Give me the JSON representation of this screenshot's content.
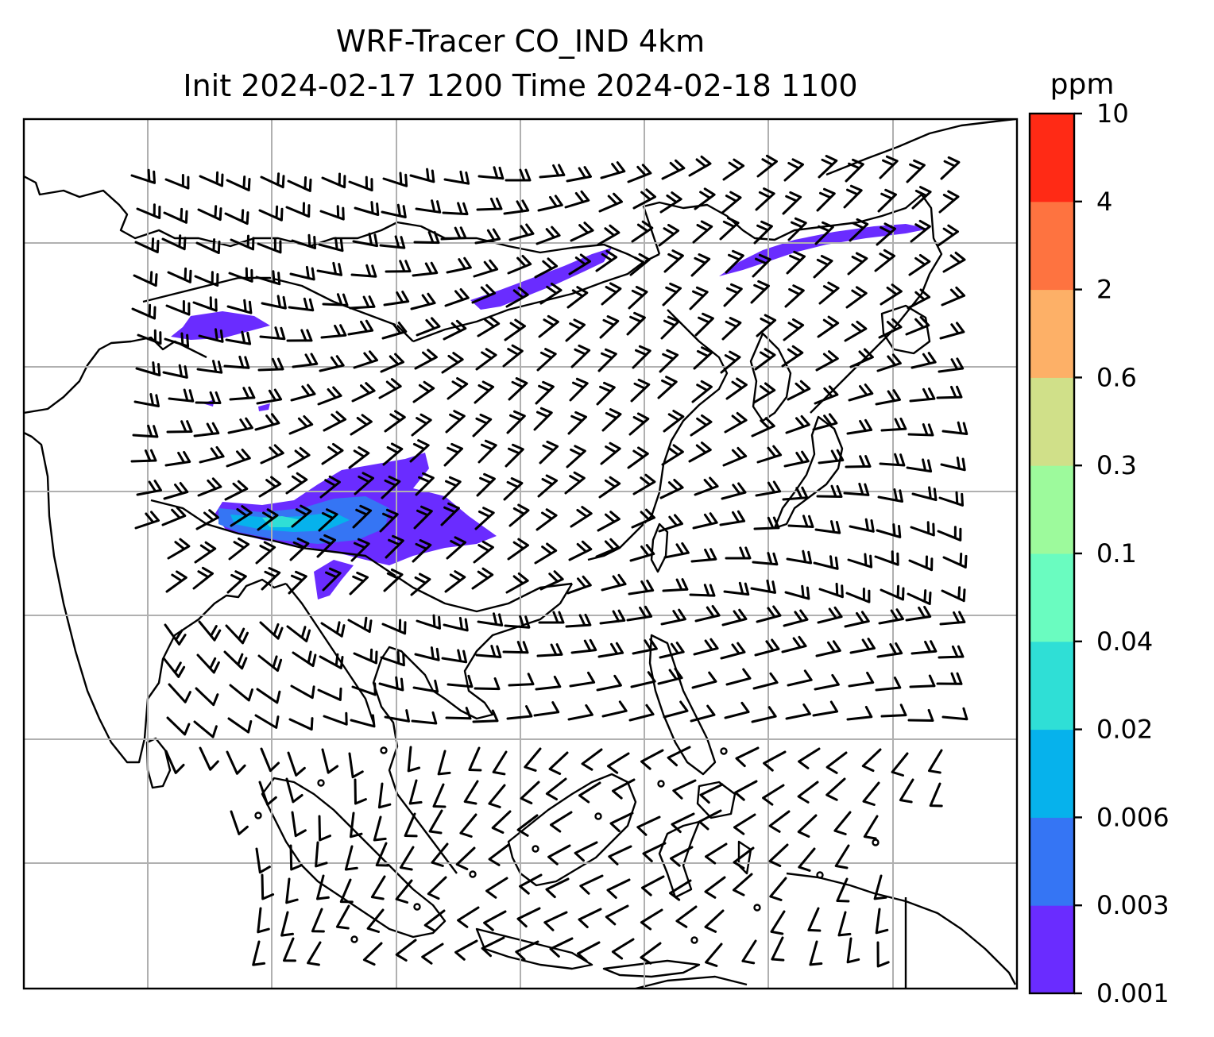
{
  "title": {
    "line1": "WRF-Tracer CO_IND 4km",
    "line2": "Init 2024-02-17 1200 Time 2024-02-18 1100"
  },
  "colorbar": {
    "unit": "ppm",
    "levels": [
      "0.001",
      "0.003",
      "0.006",
      "0.02",
      "0.04",
      "0.1",
      "0.3",
      "0.6",
      "2",
      "4",
      "10"
    ],
    "colors": [
      "#6a2cff",
      "#3575f4",
      "#06b2ec",
      "#2fdfd6",
      "#6afcc0",
      "#9dfa9c",
      "#d0e089",
      "#fdb067",
      "#fe7340",
      "#ff2a15"
    ]
  },
  "map": {
    "gridline_color": "#b0b0b0",
    "coastline_color": "#000000",
    "plume_colors": {
      "low": "#6a2cff",
      "mid": "#3575f4",
      "high": "#06b2ec",
      "peak": "#2fdfd6"
    }
  }
}
